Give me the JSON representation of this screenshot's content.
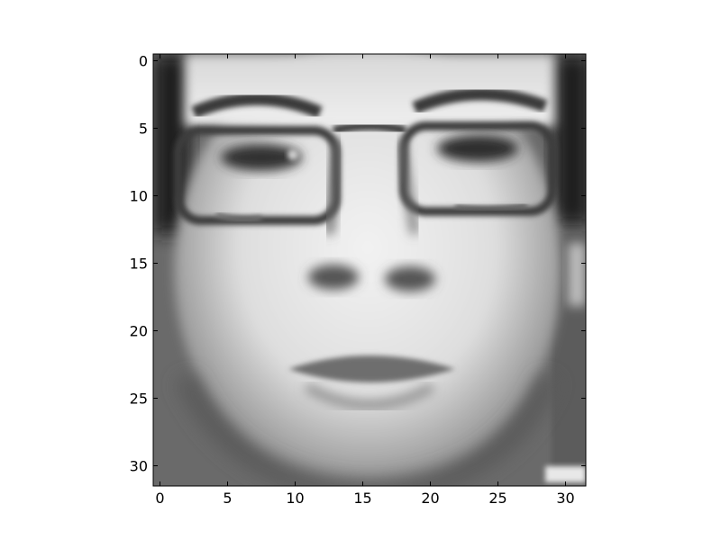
{
  "chart_data": {
    "type": "heatmap",
    "colormap": "grayscale",
    "interpolation": "smooth",
    "image_shape": [
      32,
      32
    ],
    "subject": "face-photo",
    "xlim": [
      -0.5,
      31.5
    ],
    "ylim": [
      31.5,
      -0.5
    ],
    "x_ticks": [
      0,
      5,
      10,
      15,
      20,
      25,
      30
    ],
    "y_ticks": [
      0,
      5,
      10,
      15,
      20,
      25,
      30
    ],
    "x_tick_labels": [
      "0",
      "5",
      "10",
      "15",
      "20",
      "25",
      "30"
    ],
    "y_tick_labels": [
      "0",
      "5",
      "10",
      "15",
      "20",
      "25",
      "30"
    ],
    "title": "",
    "xlabel": "",
    "ylabel": "",
    "grid": false,
    "legend": "none"
  }
}
